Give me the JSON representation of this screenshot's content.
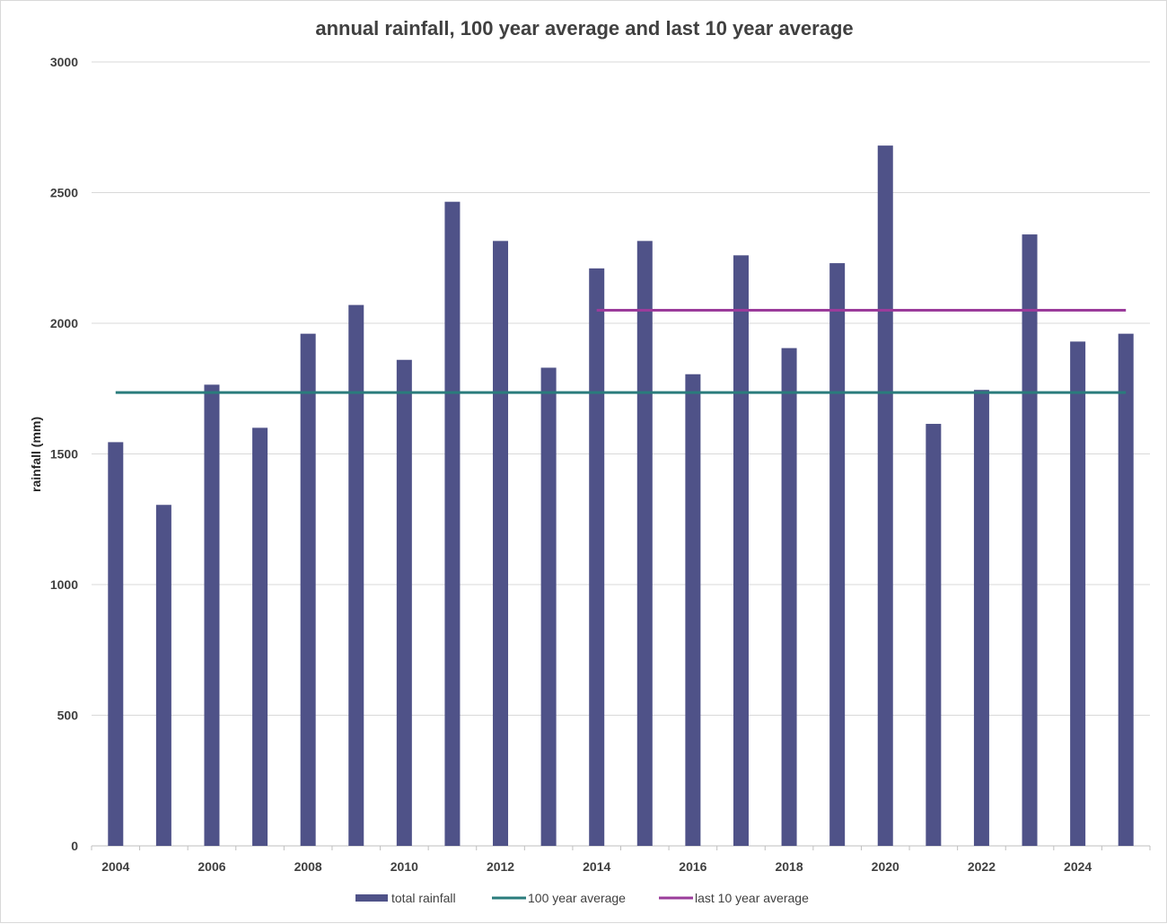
{
  "chart_data": {
    "type": "bar",
    "title": "annual rainfall, 100 year average and last 10 year average",
    "xlabel": "",
    "ylabel": "rainfall (mm)",
    "ylim": [
      0,
      3000
    ],
    "yticks": [
      0,
      500,
      1000,
      1500,
      2000,
      2500,
      3000
    ],
    "grid": true,
    "legend_position": "bottom",
    "categories": [
      2004,
      2005,
      2006,
      2007,
      2008,
      2009,
      2010,
      2011,
      2012,
      2013,
      2014,
      2015,
      2016,
      2017,
      2018,
      2019,
      2020,
      2021,
      2022,
      2023,
      2024,
      2025
    ],
    "x_tick_labels": [
      "2004",
      "2006",
      "2008",
      "2010",
      "2012",
      "2014",
      "2016",
      "2018",
      "2020",
      "2022",
      "2024"
    ],
    "series": [
      {
        "name": "total rainfall",
        "kind": "bar",
        "color": "#4f5288",
        "values": [
          1545,
          1305,
          1765,
          1600,
          1960,
          2070,
          1860,
          2465,
          2315,
          1830,
          2210,
          2315,
          1805,
          2260,
          1905,
          2230,
          2680,
          1615,
          1745,
          2340,
          1930,
          1960
        ]
      },
      {
        "name": "100 year average",
        "kind": "line",
        "color": "#2a7c7c",
        "value": 1735,
        "x_start": 2004,
        "x_end": 2025
      },
      {
        "name": "last 10 year average",
        "kind": "line",
        "color": "#9b3c9b",
        "value": 2050,
        "x_start": 2014,
        "x_end": 2025
      }
    ]
  }
}
